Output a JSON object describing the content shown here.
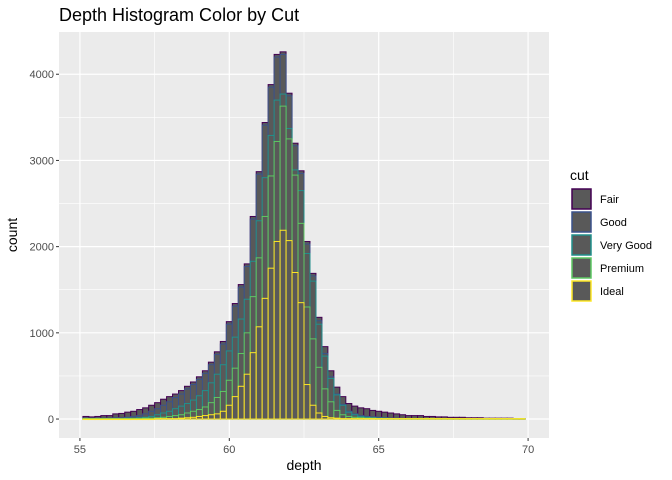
{
  "chart_data": {
    "type": "bar",
    "title": "Depth Histogram Color by Cut",
    "xlabel": "depth",
    "ylabel": "count",
    "xlim": [
      54.3,
      70.7
    ],
    "ylim": [
      -220,
      4490
    ],
    "x_ticks": [
      55,
      60,
      65,
      70
    ],
    "y_ticks": [
      0,
      1000,
      2000,
      3000,
      4000
    ],
    "grid": true,
    "stacked": true,
    "bin_width": 0.2,
    "legend": {
      "title": "cut",
      "placement": "right",
      "fill": "#595959",
      "entries": [
        {
          "name": "Fair",
          "color": "#440154"
        },
        {
          "name": "Good",
          "color": "#3B528B"
        },
        {
          "name": "Very Good",
          "color": "#21908C"
        },
        {
          "name": "Premium",
          "color": "#5DC863"
        },
        {
          "name": "Ideal",
          "color": "#FDE725"
        }
      ]
    },
    "bin_centers": [
      55.2,
      55.4,
      55.6,
      55.8,
      56.0,
      56.2,
      56.4,
      56.6,
      56.8,
      57.0,
      57.2,
      57.4,
      57.6,
      57.8,
      58.0,
      58.2,
      58.4,
      58.6,
      58.8,
      59.0,
      59.2,
      59.4,
      59.6,
      59.8,
      60.0,
      60.2,
      60.4,
      60.6,
      60.8,
      61.0,
      61.2,
      61.4,
      61.6,
      61.8,
      62.0,
      62.2,
      62.4,
      62.6,
      62.8,
      63.0,
      63.2,
      63.4,
      63.6,
      63.8,
      64.0,
      64.2,
      64.4,
      64.6,
      64.8,
      65.0,
      65.2,
      65.4,
      65.6,
      65.8,
      66.0,
      66.2,
      66.4,
      66.6,
      66.8,
      67.0,
      67.2,
      67.4,
      67.6,
      67.8,
      68.0,
      68.2,
      68.4,
      68.6,
      68.8,
      69.0,
      69.2,
      69.4,
      69.6,
      69.8
    ],
    "stacked_top": {
      "Fair": [
        30,
        25,
        30,
        40,
        40,
        60,
        65,
        80,
        90,
        110,
        130,
        160,
        190,
        230,
        260,
        290,
        330,
        380,
        430,
        490,
        560,
        660,
        780,
        900,
        1130,
        1340,
        1560,
        1800,
        2350,
        2870,
        3440,
        3880,
        4230,
        4260,
        3780,
        3200,
        2880,
        2060,
        1690,
        1180,
        840,
        560,
        370,
        260,
        180,
        150,
        130,
        120,
        100,
        90,
        80,
        70,
        60,
        50,
        40,
        40,
        40,
        30,
        30,
        25,
        25,
        20,
        20,
        20,
        15,
        15,
        15,
        10,
        10,
        10,
        10,
        10,
        5,
        5
      ],
      "Good": [
        10,
        10,
        10,
        10,
        10,
        15,
        15,
        20,
        30,
        40,
        60,
        90,
        120,
        160,
        200,
        250,
        290,
        350,
        400,
        460,
        530,
        630,
        750,
        870,
        1100,
        1310,
        1530,
        1770,
        2320,
        2840,
        3410,
        3850,
        4200,
        4230,
        3750,
        3170,
        2850,
        2030,
        1660,
        1140,
        760,
        490,
        290,
        170,
        90,
        60,
        40,
        30,
        25,
        20,
        15,
        10,
        10,
        5,
        5,
        5,
        5,
        5,
        5,
        5,
        5,
        5,
        5,
        5,
        5,
        5,
        5,
        5,
        5,
        5,
        5,
        5,
        5,
        5
      ],
      "Very Good": [
        5,
        5,
        5,
        5,
        5,
        5,
        5,
        10,
        10,
        15,
        20,
        30,
        50,
        70,
        90,
        120,
        150,
        180,
        220,
        270,
        330,
        420,
        520,
        630,
        790,
        950,
        1160,
        1390,
        1830,
        2300,
        2800,
        3290,
        3700,
        3770,
        3370,
        2890,
        2650,
        1920,
        1600,
        1100,
        730,
        470,
        280,
        160,
        80,
        50,
        30,
        20,
        15,
        10,
        10,
        5,
        5,
        5,
        5,
        5,
        5,
        5,
        5,
        5,
        5,
        5,
        5,
        5,
        5,
        5,
        5,
        5,
        5,
        5,
        5,
        5,
        5,
        5
      ],
      "Premium": [
        5,
        5,
        5,
        5,
        5,
        5,
        5,
        5,
        5,
        5,
        10,
        10,
        15,
        20,
        30,
        40,
        50,
        70,
        90,
        110,
        140,
        190,
        250,
        320,
        450,
        590,
        760,
        1000,
        1420,
        1870,
        2350,
        2820,
        3220,
        3630,
        3250,
        2830,
        2270,
        1300,
        930,
        600,
        350,
        200,
        100,
        50,
        30,
        20,
        15,
        10,
        10,
        5,
        5,
        5,
        5,
        5,
        5,
        5,
        5,
        5,
        5,
        5,
        5,
        5,
        5,
        5,
        5,
        5,
        5,
        5,
        5,
        5,
        5,
        5,
        5,
        5
      ],
      "Ideal": [
        0,
        0,
        0,
        0,
        0,
        0,
        0,
        0,
        0,
        0,
        0,
        0,
        5,
        5,
        5,
        5,
        10,
        15,
        20,
        30,
        40,
        50,
        60,
        90,
        160,
        260,
        380,
        520,
        770,
        1070,
        1400,
        1750,
        2060,
        2190,
        2070,
        1700,
        1350,
        400,
        160,
        70,
        30,
        15,
        10,
        5,
        5,
        5,
        5,
        5,
        5,
        5,
        5,
        5,
        5,
        5,
        5,
        5,
        5,
        5,
        5,
        5,
        5,
        5,
        5,
        5,
        5,
        5,
        5,
        5,
        5,
        5,
        5,
        5,
        5,
        5
      ]
    }
  }
}
